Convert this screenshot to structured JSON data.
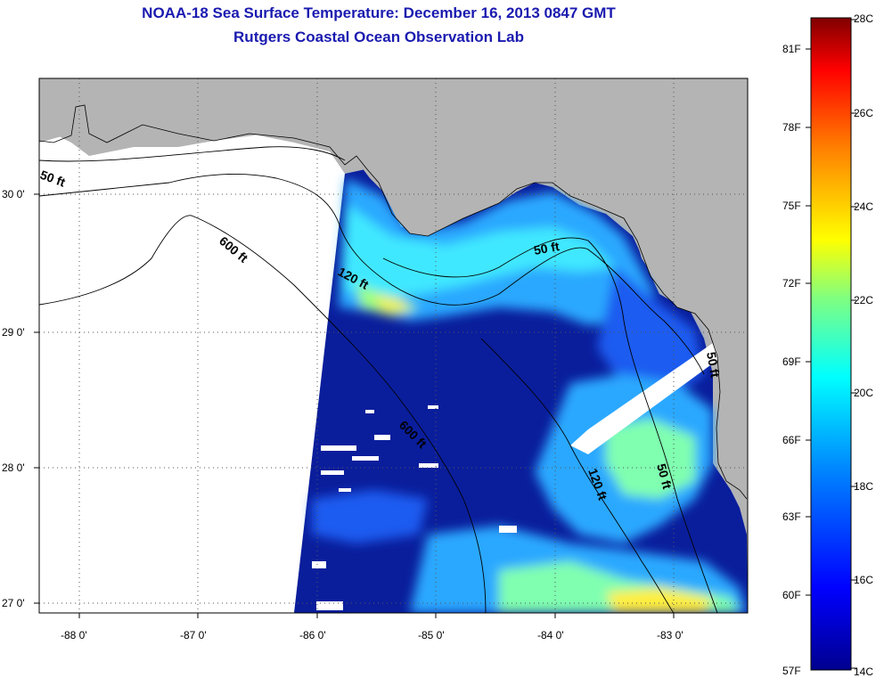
{
  "title_line1": "NOAA-18 Sea Surface Temperature:  December 16, 2013 0847 GMT",
  "title_line2": "Rutgers Coastal Ocean Observation Lab",
  "lon_labels": [
    "-88 0'",
    "-87 0'",
    "-86 0'",
    "-85 0'",
    "-84 0'",
    "-83 0'"
  ],
  "lat_labels": [
    "30 0'",
    "29 0'",
    "28 0'",
    "27 0'"
  ],
  "contour_labels": [
    "50 ft",
    "600 ft",
    "120 ft",
    "50 ft",
    "600 ft",
    "120 ft",
    "50 ft",
    "50 ft"
  ],
  "colorbar": {
    "fahrenheit": [
      "81F",
      "78F",
      "75F",
      "72F",
      "69F",
      "66F",
      "63F",
      "60F",
      "57F"
    ],
    "celsius": [
      "28C",
      "26C",
      "24C",
      "22C",
      "20C",
      "18C",
      "16C",
      "14C"
    ],
    "colors": [
      "#00008f",
      "#0000ff",
      "#0080ff",
      "#00ffff",
      "#80ff80",
      "#ffff00",
      "#ff8000",
      "#ff0000",
      "#800000"
    ]
  },
  "colors": {
    "land": "#b4b4b4",
    "cold_water": "#0a1e9c",
    "title": "#1a1ab0"
  }
}
